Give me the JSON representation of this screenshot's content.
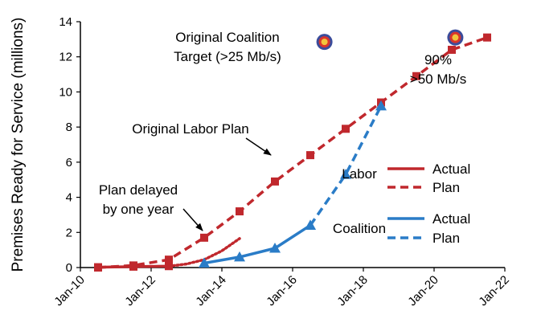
{
  "chart_data": {
    "type": "line",
    "title": "",
    "xlabel": "",
    "ylabel": "Premises Ready for Service (millions)",
    "x_ticks": [
      "Jan-10",
      "Jan-12",
      "Jan-14",
      "Jan-16",
      "Jan-18",
      "Jan-20",
      "Jan-22"
    ],
    "x_tick_years": [
      2010,
      2012,
      2014,
      2016,
      2018,
      2020,
      2022
    ],
    "xlim_years": [
      2010,
      2022
    ],
    "y_ticks": [
      "0",
      "2",
      "4",
      "6",
      "8",
      "10",
      "12",
      "14"
    ],
    "ylim": [
      0,
      14
    ],
    "grid": false,
    "series": [
      {
        "name": "Actual",
        "group": "Labor",
        "style": "solid",
        "color": "#c0282d",
        "marker": "square",
        "x": [
          2010.5,
          2011.5,
          2012.5
        ],
        "y": [
          0.02,
          0.05,
          0.08
        ]
      },
      {
        "name": "Plan",
        "group": "Labor",
        "style": "dashed",
        "color": "#c0282d",
        "marker": "square",
        "x": [
          2010.5,
          2011.5,
          2012.5,
          2013.5,
          2014.5,
          2015.5,
          2016.5,
          2017.5,
          2018.5,
          2019.5,
          2020.5,
          2021.5
        ],
        "y": [
          0.0,
          0.12,
          0.45,
          1.7,
          3.2,
          4.9,
          6.4,
          7.9,
          9.4,
          10.9,
          12.4,
          13.1
        ]
      },
      {
        "name": "Plan delayed by one year",
        "group": "Labor",
        "style": "dotted",
        "color": "#c0282d",
        "marker": "none",
        "x": [
          2012.5,
          2013.0,
          2013.5,
          2014.0,
          2014.5
        ],
        "y": [
          0.08,
          0.2,
          0.45,
          0.95,
          1.65
        ]
      },
      {
        "name": "Actual",
        "group": "Coalition",
        "style": "solid",
        "color": "#2a7cc7",
        "marker": "triangle",
        "x": [
          2013.5,
          2014.5,
          2015.5,
          2016.5
        ],
        "y": [
          0.25,
          0.6,
          1.1,
          2.4
        ]
      },
      {
        "name": "Plan",
        "group": "Coalition",
        "style": "dashed",
        "color": "#2a7cc7",
        "marker": "triangle",
        "x": [
          2016.5,
          2017.5,
          2018.5
        ],
        "y": [
          2.4,
          5.3,
          9.2
        ]
      }
    ],
    "target_markers": [
      {
        "label": "Original Coalition Target (>25 Mb/s)",
        "x": 2016.9,
        "y": 12.85
      },
      {
        "label": "90% >50 Mb/s",
        "x": 2020.6,
        "y": 13.1
      }
    ],
    "annotations": [
      {
        "text_lines": [
          "Original Coalition",
          "Target (>25 Mb/s)"
        ]
      },
      {
        "text_lines": [
          "90%",
          ">50 Mb/s"
        ]
      },
      {
        "text_lines": [
          "Original Labor Plan"
        ]
      },
      {
        "text_lines": [
          "Plan delayed",
          "by one year"
        ]
      }
    ],
    "legend": {
      "placement": "right",
      "groups": [
        {
          "name": "Labor",
          "color": "#c0282d",
          "entries": [
            "Actual",
            "Plan"
          ]
        },
        {
          "name": "Coalition",
          "color": "#2a7cc7",
          "entries": [
            "Actual",
            "Plan"
          ]
        }
      ]
    }
  }
}
